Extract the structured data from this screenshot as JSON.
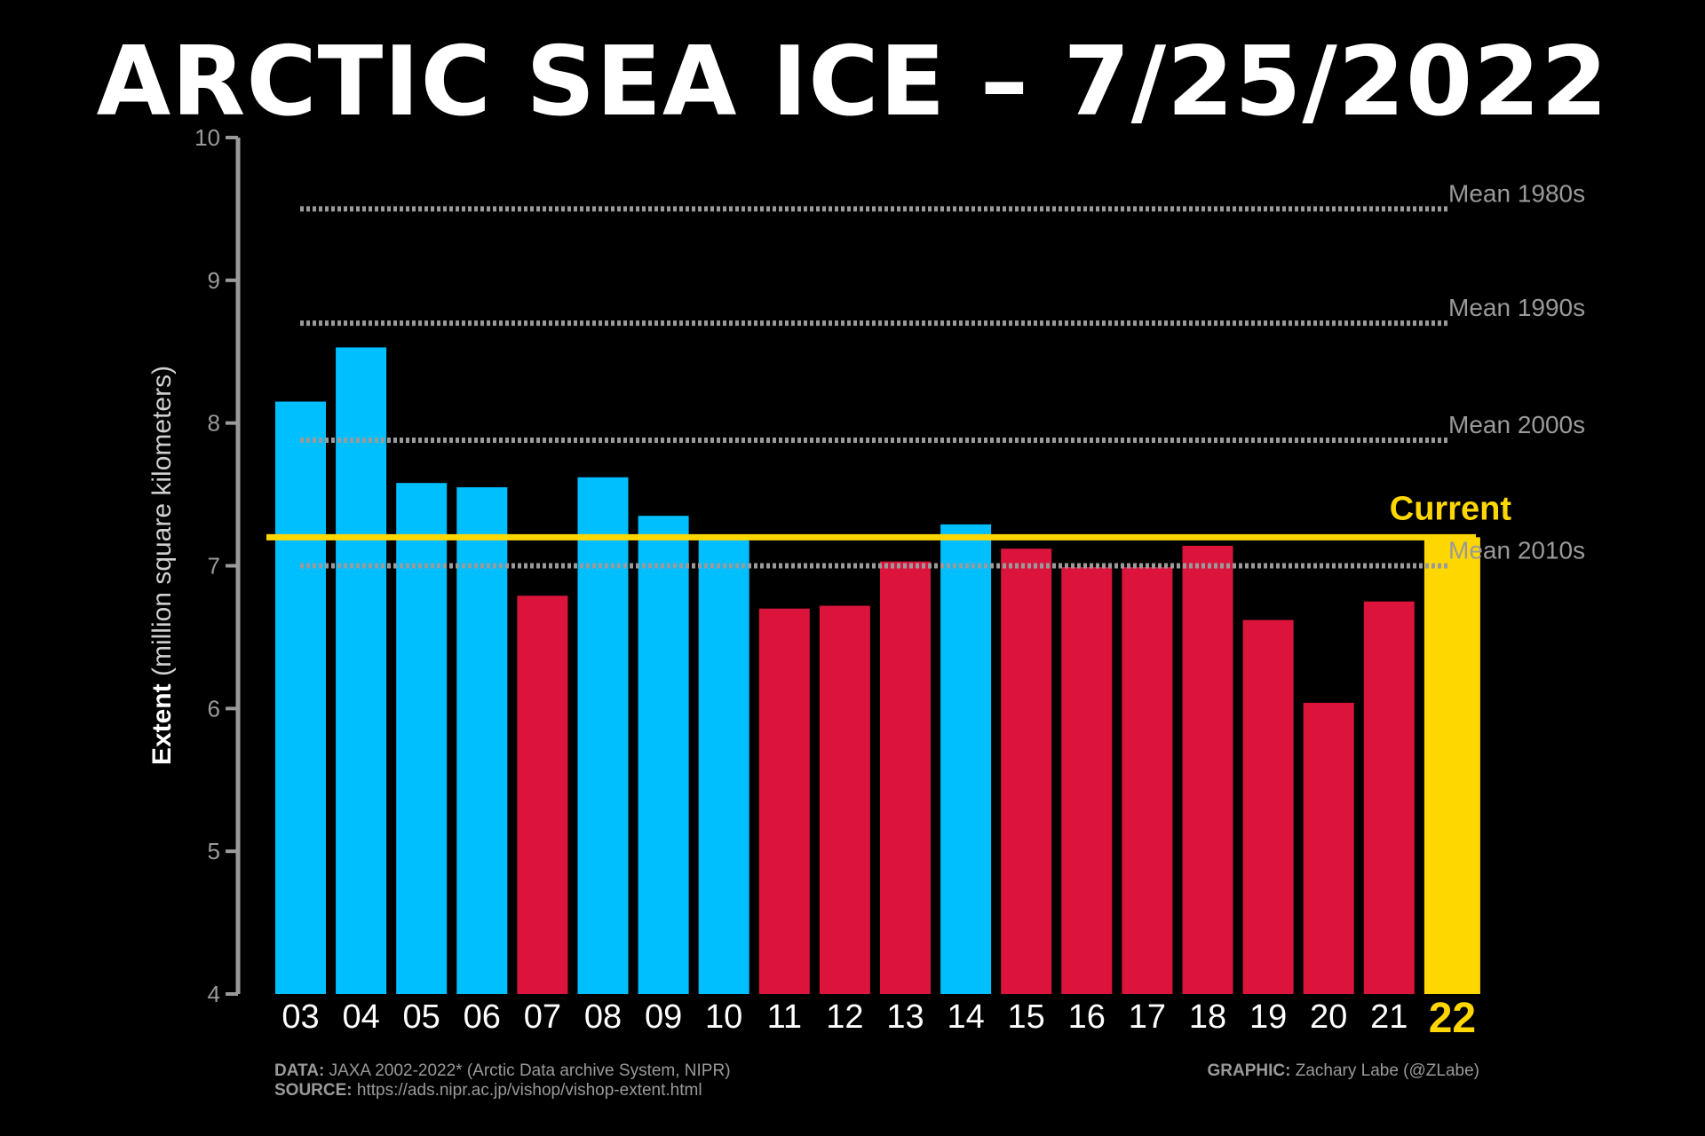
{
  "title": "ARCTIC SEA ICE – 7/25/2022",
  "colors": {
    "background": "#000000",
    "above_current": "#00bfff",
    "below_current": "#dc143c",
    "current": "#ffd700",
    "mean_line": "#9a9a9a",
    "axis": "#9a9a9a",
    "text": "#ffffff"
  },
  "chart_data": {
    "type": "bar",
    "title": "ARCTIC SEA ICE – 7/25/2022",
    "ylabel_bold": "Extent",
    "ylabel_rest": "(million square kilometers)",
    "ylim": [
      4,
      10
    ],
    "yticks": [
      4,
      5,
      6,
      7,
      8,
      9,
      10
    ],
    "grid": false,
    "categories": [
      "03",
      "04",
      "05",
      "06",
      "07",
      "08",
      "09",
      "10",
      "11",
      "12",
      "13",
      "14",
      "15",
      "16",
      "17",
      "18",
      "19",
      "20",
      "21",
      "22"
    ],
    "values": [
      8.15,
      8.53,
      7.58,
      7.55,
      6.79,
      7.62,
      7.35,
      7.22,
      6.7,
      6.72,
      7.03,
      7.29,
      7.12,
      6.99,
      6.99,
      7.14,
      6.62,
      6.04,
      6.75,
      7.2
    ],
    "bar_colors": [
      "#00bfff",
      "#00bfff",
      "#00bfff",
      "#00bfff",
      "#dc143c",
      "#00bfff",
      "#00bfff",
      "#00bfff",
      "#dc143c",
      "#dc143c",
      "#dc143c",
      "#00bfff",
      "#dc143c",
      "#dc143c",
      "#dc143c",
      "#dc143c",
      "#dc143c",
      "#dc143c",
      "#dc143c",
      "#ffd700"
    ],
    "current_value": 7.2,
    "current_label": "Current",
    "mean_lines": [
      {
        "label": "Mean 1980s",
        "value": 9.5
      },
      {
        "label": "Mean 1990s",
        "value": 8.7
      },
      {
        "label": "Mean 2000s",
        "value": 7.88
      },
      {
        "label": "Mean 2010s",
        "value": 7.0
      }
    ]
  },
  "footer": {
    "data_key": "DATA:",
    "data_value": "JAXA 2002-2022* (Arctic Data archive System, NIPR)",
    "source_key": "SOURCE:",
    "source_value": "https://ads.nipr.ac.jp/vishop/vishop-extent.html",
    "graphic_key": "GRAPHIC:",
    "graphic_value": "Zachary Labe (@ZLabe)"
  }
}
